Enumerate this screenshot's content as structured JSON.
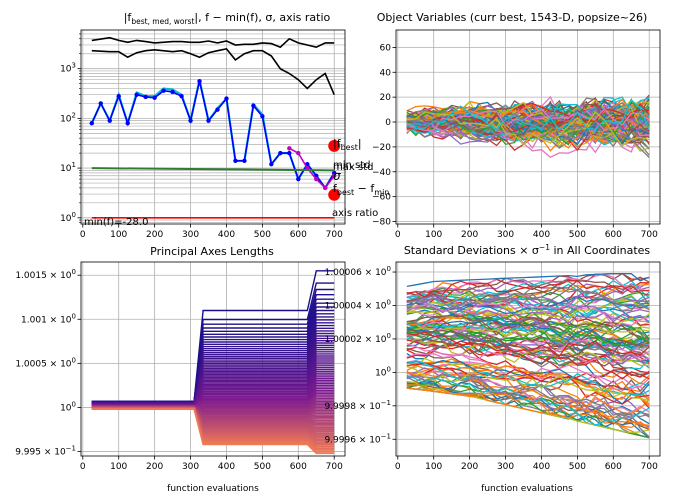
{
  "chart_data": [
    {
      "type": "line",
      "title": "|f_best,med,worst|, f − min(f), σ, axis ratio",
      "title_parts": {
        "t1": "|f",
        "sub": "best, med, worst",
        "t2": "|, f − min(f), σ, axis ratio"
      },
      "xlabel": "",
      "ylabel": "",
      "yscale": "log",
      "xlim": [
        -5,
        730
      ],
      "ylim": [
        0.75,
        6000
      ],
      "x_ticks": [
        "0",
        "100",
        "200",
        "300",
        "400",
        "500",
        "600",
        "700"
      ],
      "y_ticks": [
        "10^0",
        "10^1",
        "10^2",
        "10^3"
      ],
      "grid": true,
      "series": [
        {
          "role": "worst",
          "color": "#000000",
          "x": [
            25,
            75,
            100,
            125,
            150,
            175,
            200,
            250,
            275,
            300,
            325,
            350,
            375,
            400,
            425,
            450,
            475,
            500,
            525,
            550,
            575,
            600,
            625,
            650,
            675,
            700
          ],
          "y": [
            3700,
            4200,
            3700,
            3400,
            3700,
            3500,
            3300,
            3500,
            3500,
            3400,
            3400,
            3600,
            3300,
            3600,
            3000,
            3100,
            3100,
            3300,
            3200,
            2700,
            4000,
            3300,
            3000,
            2700,
            3300,
            3300
          ]
        },
        {
          "role": "median",
          "color": "#000000",
          "x": [
            25,
            75,
            100,
            125,
            150,
            175,
            200,
            250,
            275,
            300,
            325,
            350,
            375,
            400,
            425,
            450,
            475,
            500,
            525,
            550,
            575,
            600,
            625,
            650,
            675,
            700
          ],
          "y": [
            2300,
            2200,
            2200,
            1700,
            2100,
            2300,
            2400,
            2200,
            2300,
            2000,
            1700,
            2100,
            2300,
            2500,
            1500,
            2000,
            2300,
            2300,
            1800,
            1000,
            800,
            600,
            400,
            600,
            800,
            300
          ]
        },
        {
          "role": "best",
          "color": "#00bcd4",
          "x": [
            25,
            50,
            75,
            100,
            125,
            150,
            175,
            200,
            225,
            250,
            275,
            300,
            325,
            350,
            375,
            400,
            425,
            450,
            475,
            500,
            525,
            550,
            575,
            600,
            625,
            650,
            675,
            700
          ],
          "y": [
            80,
            200,
            90,
            300,
            80,
            330,
            280,
            280,
            400,
            380,
            300,
            90,
            600,
            90,
            160,
            250,
            14,
            14,
            190,
            120,
            12,
            20,
            20,
            6,
            12,
            7,
            4,
            8
          ]
        },
        {
          "role": "f-min(f)",
          "color": "#0000ff",
          "x": [
            25,
            50,
            75,
            100,
            125,
            150,
            175,
            200,
            225,
            250,
            275,
            300,
            325,
            350,
            375,
            400,
            425,
            450,
            475,
            500,
            525,
            550,
            575,
            600,
            625,
            650,
            675,
            700
          ],
          "y": [
            80,
            200,
            90,
            280,
            80,
            300,
            270,
            260,
            360,
            340,
            280,
            90,
            560,
            90,
            150,
            250,
            14,
            14,
            180,
            110,
            12,
            20,
            20,
            6,
            12,
            7,
            4,
            8
          ]
        },
        {
          "role": "f-min(f) late",
          "color": "#c000c0",
          "x": [
            575,
            600,
            625,
            650,
            675,
            700
          ],
          "y": [
            25,
            20,
            10,
            6,
            4,
            7
          ]
        },
        {
          "role": "sigma",
          "color": "#2e7d32",
          "x": [
            25,
            700
          ],
          "y": [
            10.0,
            9.0
          ]
        },
        {
          "role": "axis ratio",
          "color": "#ff0000",
          "x": [
            25,
            700
          ],
          "y": [
            1.0,
            1.0
          ]
        }
      ],
      "markers": [
        {
          "x": 700,
          "y": 28,
          "color": "#ff0000",
          "label": "|f_best|",
          "label_parts": {
            "t1": "|f",
            "sub": "best",
            "t2": "|"
          }
        },
        {
          "x": 700,
          "y": 2.9,
          "color": "#ff0000",
          "label": "f_best − f_min",
          "label_parts": {
            "t1": "f",
            "sub1": "best",
            "t2": " − f",
            "sub2": "min"
          }
        }
      ],
      "annotations": [
        "max std",
        "min std",
        "σ",
        "axis ratio",
        "min(f)=-28.0"
      ],
      "legend": "none"
    },
    {
      "type": "line",
      "title": "Object Variables (curr best, 1543-D, popsize~26)",
      "xlim": [
        -5,
        730
      ],
      "ylim": [
        -82,
        74
      ],
      "x_ticks": [
        "0",
        "100",
        "200",
        "300",
        "400",
        "500",
        "600",
        "700"
      ],
      "y_ticks": [
        "−80",
        "−60",
        "−40",
        "−20",
        "0",
        "20",
        "40",
        "60"
      ],
      "grid": true,
      "n_variables": 1543,
      "x": [
        25,
        100,
        200,
        300,
        400,
        500,
        600,
        700
      ],
      "series_summary": {
        "center": [
          0,
          0,
          0,
          0,
          0,
          0,
          0,
          0
        ],
        "spread": [
          28,
          36,
          40,
          46,
          52,
          56,
          60,
          64
        ]
      },
      "colors": [
        "#1f77b4",
        "#ff7f0e",
        "#2ca02c",
        "#d62728",
        "#9467bd",
        "#8c564b",
        "#e377c2",
        "#7f7f7f",
        "#bcbd22",
        "#17becf"
      ]
    },
    {
      "type": "line",
      "title": "Principal Axes Lengths",
      "xlabel": "function evaluations",
      "yscale": "log",
      "xlim": [
        -5,
        730
      ],
      "ylim": [
        0.99945,
        1.00165
      ],
      "x_ticks": [
        "0",
        "100",
        "200",
        "300",
        "400",
        "500",
        "600",
        "700"
      ],
      "y_ticks": [
        "9.995 × 10^−1",
        "10^0",
        "1.0005 × 10^0",
        "1.001 × 10^0",
        "1.0015 × 10^0"
      ],
      "grid": true,
      "x": [
        25,
        310,
        335,
        625,
        650,
        700
      ],
      "upper_band": [
        1.00007,
        1.00007,
        1.0011,
        1.0011,
        1.00155,
        1.00155
      ],
      "lower_band": [
        0.99998,
        0.99998,
        0.99958,
        0.99958,
        0.99948,
        0.99948
      ],
      "colors": {
        "top": "#1a0f8c",
        "mid": "#7d1a8f",
        "bottom": "#f07a55"
      }
    },
    {
      "type": "line",
      "title": "Standard Deviations × σ^−1 in All Coordinates",
      "title_parts": {
        "t1": "Standard Deviations × σ",
        "sup": "−1",
        "t2": " in All Coordinates"
      },
      "xlabel": "function evaluations",
      "yscale": "log",
      "xlim": [
        -5,
        730
      ],
      "ylim": [
        0.99995,
        1.000066
      ],
      "x_ticks": [
        "0",
        "100",
        "200",
        "300",
        "400",
        "500",
        "600",
        "700"
      ],
      "y_ticks": [
        "9.9996 × 10^−1",
        "9.9998 × 10^−1",
        "10^0",
        "1.00002 × 10^0",
        "1.00004 × 10^0",
        "1.00006 × 10^0"
      ],
      "grid": true,
      "n_coordinates": 1543,
      "x": [
        25,
        100,
        200,
        300,
        400,
        500,
        600,
        700
      ],
      "series_summary": {
        "upper": [
          1.000052,
          1.000055,
          1.000056,
          1.000057,
          1.000058,
          1.000059,
          1.00006,
          1.00006
        ],
        "lower": [
          0.99999,
          0.999988,
          0.999985,
          0.99998,
          0.999975,
          0.99997,
          0.999965,
          0.99996
        ]
      },
      "colors": [
        "#1f77b4",
        "#ff7f0e",
        "#2ca02c",
        "#d62728",
        "#9467bd",
        "#8c564b",
        "#e377c2",
        "#7f7f7f",
        "#bcbd22",
        "#17becf"
      ]
    }
  ]
}
